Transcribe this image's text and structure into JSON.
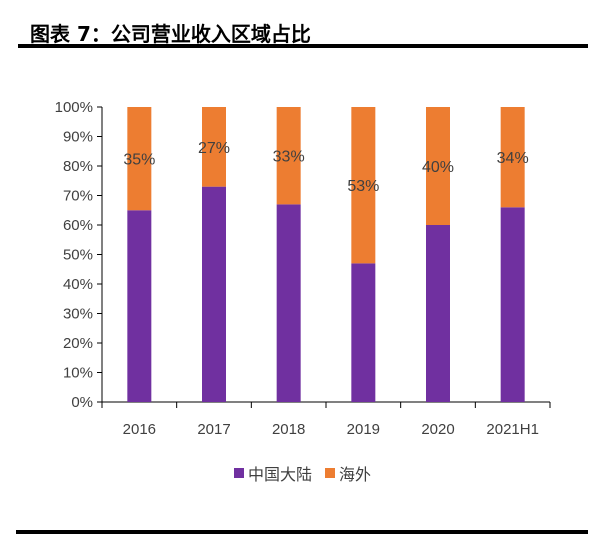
{
  "title": "图表 7：公司营业收入区域占比",
  "chart_data": {
    "type": "bar",
    "stacked": true,
    "title": "",
    "categories": [
      "2016",
      "2017",
      "2018",
      "2019",
      "2020",
      "2021H1"
    ],
    "series": [
      {
        "name": "中国大陆",
        "values": [
          65,
          73,
          67,
          47,
          60,
          66
        ],
        "color": "#7030A0"
      },
      {
        "name": "海外",
        "values": [
          35,
          27,
          33,
          53,
          40,
          34
        ],
        "color": "#ED7D31",
        "data_labels": [
          "35%",
          "27%",
          "33%",
          "53%",
          "40%",
          "34%"
        ]
      }
    ],
    "ylim": [
      0,
      100
    ],
    "yticks": [
      "0%",
      "10%",
      "20%",
      "30%",
      "40%",
      "50%",
      "60%",
      "70%",
      "80%",
      "90%",
      "100%"
    ],
    "grid": false,
    "legend": "bottom"
  }
}
